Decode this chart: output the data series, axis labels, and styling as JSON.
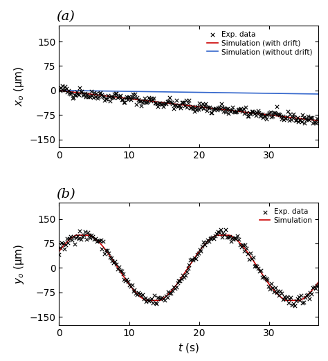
{
  "title_a": "(a)",
  "title_b": "(b)",
  "xlabel": "t (s)",
  "ylabel_a": "x_o (μm)",
  "ylabel_b": "y_o (μm)",
  "xlim": [
    0,
    37
  ],
  "ylim_a": [
    -175,
    200
  ],
  "ylim_b": [
    -175,
    200
  ],
  "yticks": [
    -150,
    -75,
    0,
    75,
    150
  ],
  "xticks": [
    0,
    10,
    20,
    30
  ],
  "color_exp": "#000000",
  "color_sim_drift": "#cc0000",
  "color_sim_nodrift": "#3366cc",
  "color_sim_b": "#cc0000",
  "background_color": "#ffffff",
  "legend_a": [
    "Exp. data",
    "Simulation (with drift)",
    "Simulation (without drift)"
  ],
  "legend_b": [
    "Exp. data",
    "Simulation"
  ]
}
